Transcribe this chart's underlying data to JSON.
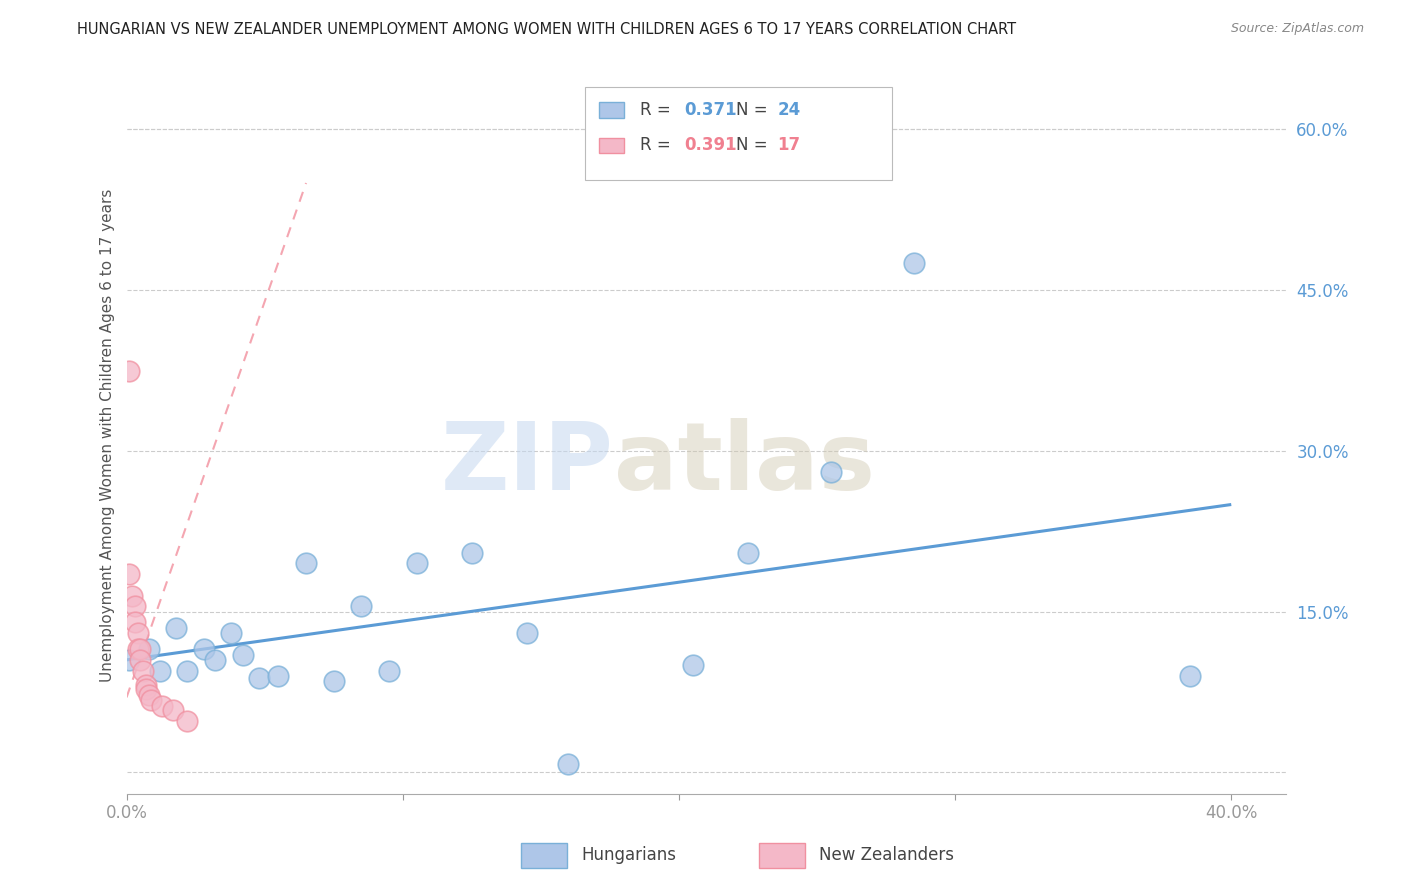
{
  "title": "HUNGARIAN VS NEW ZEALANDER UNEMPLOYMENT AMONG WOMEN WITH CHILDREN AGES 6 TO 17 YEARS CORRELATION CHART",
  "source": "Source: ZipAtlas.com",
  "ylabel": "Unemployment Among Women with Children Ages 6 to 17 years",
  "xlim": [
    0.0,
    0.42
  ],
  "ylim": [
    -0.02,
    0.65
  ],
  "yticks_right": [
    0.0,
    0.15,
    0.3,
    0.45,
    0.6
  ],
  "ytick_labels_right": [
    "",
    "15.0%",
    "30.0%",
    "45.0%",
    "60.0%"
  ],
  "blue_scatter_x": [
    0.001,
    0.008,
    0.012,
    0.018,
    0.022,
    0.028,
    0.032,
    0.038,
    0.042,
    0.048,
    0.055,
    0.065,
    0.075,
    0.085,
    0.095,
    0.105,
    0.125,
    0.145,
    0.16,
    0.205,
    0.225,
    0.255,
    0.285,
    0.385
  ],
  "blue_scatter_y": [
    0.105,
    0.115,
    0.095,
    0.135,
    0.095,
    0.115,
    0.105,
    0.13,
    0.11,
    0.088,
    0.09,
    0.195,
    0.085,
    0.155,
    0.095,
    0.195,
    0.205,
    0.13,
    0.008,
    0.1,
    0.205,
    0.28,
    0.475,
    0.09
  ],
  "pink_scatter_x": [
    0.001,
    0.001,
    0.002,
    0.003,
    0.003,
    0.004,
    0.004,
    0.005,
    0.005,
    0.006,
    0.007,
    0.007,
    0.008,
    0.009,
    0.013,
    0.017,
    0.022
  ],
  "pink_scatter_y": [
    0.375,
    0.185,
    0.165,
    0.155,
    0.14,
    0.13,
    0.115,
    0.115,
    0.105,
    0.095,
    0.082,
    0.078,
    0.072,
    0.068,
    0.062,
    0.058,
    0.048
  ],
  "blue_line_x": [
    0.0,
    0.4
  ],
  "blue_line_y": [
    0.105,
    0.25
  ],
  "pink_line_x": [
    0.0,
    0.065
  ],
  "pink_line_y": [
    0.07,
    0.55
  ],
  "watermark_zip": "ZIP",
  "watermark_atlas": "atlas",
  "blue_color": "#5b9bd5",
  "pink_color": "#f08090",
  "blue_scatter_face": "#aec6e8",
  "pink_scatter_face": "#f4b8c8",
  "blue_scatter_edge": "#7ab0d8",
  "pink_scatter_edge": "#f090a0",
  "legend_R1": "0.371",
  "legend_N1": "24",
  "legend_R2": "0.391",
  "legend_N2": "17",
  "legend_label1": "Hungarians",
  "legend_label2": "New Zealanders"
}
